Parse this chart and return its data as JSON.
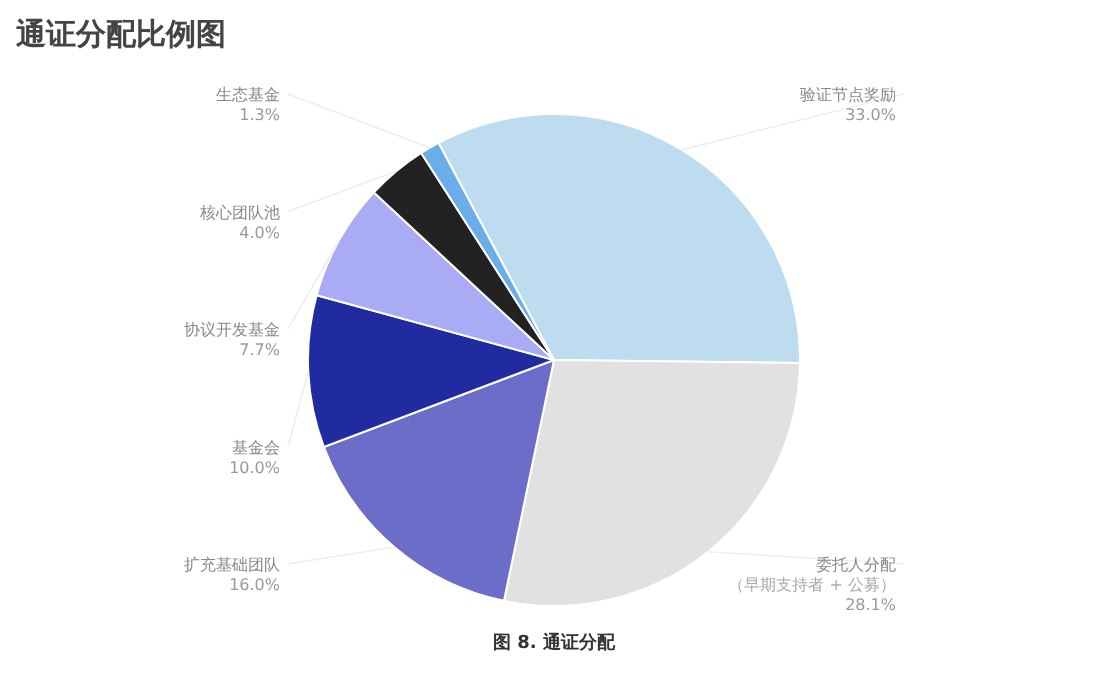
{
  "chart_data": {
    "type": "pie",
    "title": "通证分配比例图",
    "categories": [
      "验证节点奖励",
      "委托人分配（早期支持者 + 公募）",
      "扩充基础团队",
      "基金会",
      "协议开发基金",
      "核心团队池",
      "生态基金"
    ],
    "values": [
      33.0,
      28.1,
      16.0,
      10.0,
      7.7,
      4.0,
      1.3
    ],
    "colors": [
      "#bddcef",
      "#e1e1e1",
      "#6b6dc8",
      "#1f2b9f",
      "#a9abf4",
      "#222222",
      "#69aee9"
    ],
    "value_labels": [
      "33.0%",
      "28.1%",
      "16.0%",
      "10.0%",
      "7.7%",
      "4.0%",
      "1.3%"
    ],
    "annotations": [
      "图 8. 通证分配"
    ]
  }
}
